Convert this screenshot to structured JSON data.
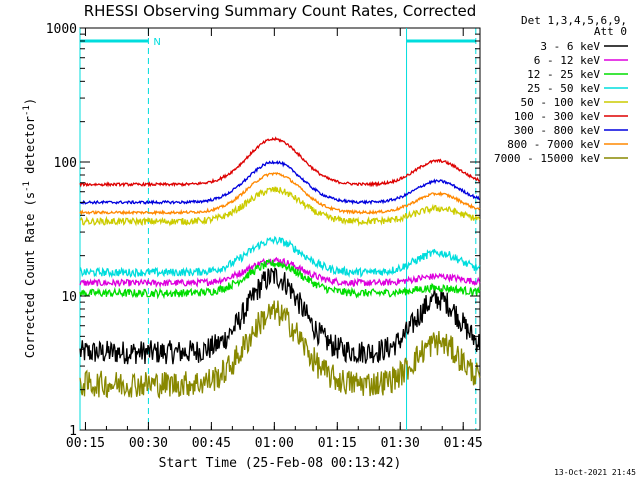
{
  "chart_data": {
    "type": "line",
    "title": "RHESSI Observing Summary Count Rates, Corrected",
    "xlabel": "Start Time (25-Feb-08 00:13:42)",
    "ylabel_parts": [
      "Corrected Count Rate (s",
      "-1",
      " detector",
      "-1",
      ")"
    ],
    "y_scale": "log",
    "ylim": [
      1,
      1000
    ],
    "xlim_minutes": [
      13.7,
      109
    ],
    "x_ticks": [
      {
        "label": "00:15",
        "minute": 15
      },
      {
        "label": "00:30",
        "minute": 30
      },
      {
        "label": "00:45",
        "minute": 45
      },
      {
        "label": "01:00",
        "minute": 60
      },
      {
        "label": "01:15",
        "minute": 75
      },
      {
        "label": "01:30",
        "minute": 90
      },
      {
        "label": "01:45",
        "minute": 105
      }
    ],
    "y_ticks": [
      {
        "label": "1",
        "value": 1
      },
      {
        "label": "10",
        "value": 10
      },
      {
        "label": "100",
        "value": 100
      },
      {
        "label": "1000",
        "value": 1000
      }
    ],
    "legend_header": [
      "Det 1,3,4,5,6,9,",
      "Att 0"
    ],
    "legend_position": "right",
    "series": [
      {
        "name": "3 - 6 keV",
        "color": "#000000",
        "base": 3.8,
        "peak": 14,
        "peak2": 9.5,
        "noise": 0.18
      },
      {
        "name": "6 - 12 keV",
        "color": "#dd00dd",
        "base": 12.5,
        "peak": 18.5,
        "peak2": 14,
        "noise": 0.05
      },
      {
        "name": "12 - 25 keV",
        "color": "#00dd00",
        "base": 10.5,
        "peak": 17.5,
        "peak2": 11.5,
        "noise": 0.06
      },
      {
        "name": "25 - 50 keV",
        "color": "#00dddd",
        "base": 15,
        "peak": 26,
        "peak2": 21,
        "noise": 0.06
      },
      {
        "name": "50 - 100 keV",
        "color": "#cccc00",
        "base": 36,
        "peak": 62,
        "peak2": 45,
        "noise": 0.05
      },
      {
        "name": "100 - 300 keV",
        "color": "#dd0000",
        "base": 68,
        "peak": 148,
        "peak2": 102,
        "noise": 0.02
      },
      {
        "name": "300 - 800 keV",
        "color": "#0000dd",
        "base": 50,
        "peak": 100,
        "peak2": 72,
        "noise": 0.02
      },
      {
        "name": "800 - 7000 keV",
        "color": "#ff8800",
        "base": 42,
        "peak": 82,
        "peak2": 58,
        "noise": 0.02
      },
      {
        "name": "7000 - 15000 keV",
        "color": "#888800",
        "base": 2.2,
        "peak": 7.5,
        "peak2": 4.5,
        "noise": 0.2
      }
    ],
    "annotations": [
      {
        "text": "N",
        "color": "#00dddd"
      }
    ],
    "vertical_lines_minutes": [
      {
        "minute": 13.7,
        "style": "solid"
      },
      {
        "minute": 30,
        "style": "dashed"
      },
      {
        "minute": 91.5,
        "style": "solid"
      },
      {
        "minute": 108,
        "style": "dashed"
      }
    ],
    "night_bars_minutes": [
      {
        "start": 13.7,
        "end": 30
      },
      {
        "start": 91.5,
        "end": 108
      }
    ],
    "grid": false
  },
  "footer": {
    "date": "13-Oct-2021 21:45"
  }
}
